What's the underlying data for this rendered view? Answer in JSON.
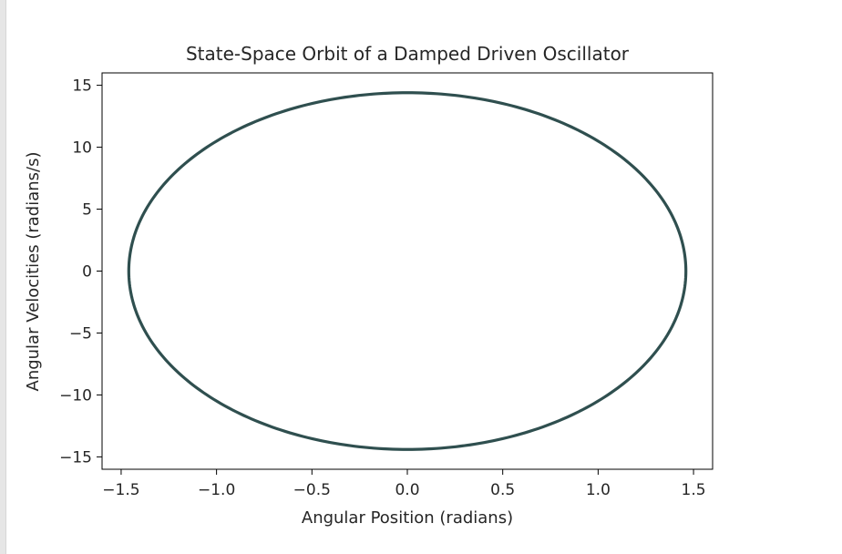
{
  "chart_data": {
    "type": "line",
    "title": "State-Space Orbit of a Damped Driven Oscillator",
    "xlabel": "Angular Position (radians)",
    "ylabel": "Angular Velocities (radians/s)",
    "xlim": [
      -1.6,
      1.6
    ],
    "ylim": [
      -16,
      16
    ],
    "xticks": [
      {
        "value": -1.5,
        "label": "−1.5"
      },
      {
        "value": -1.0,
        "label": "−1.0"
      },
      {
        "value": -0.5,
        "label": "−0.5"
      },
      {
        "value": 0.0,
        "label": "0.0"
      },
      {
        "value": 0.5,
        "label": "0.5"
      },
      {
        "value": 1.0,
        "label": "1.0"
      },
      {
        "value": 1.5,
        "label": "1.5"
      }
    ],
    "yticks": [
      {
        "value": -15,
        "label": "−15"
      },
      {
        "value": -10,
        "label": "−10"
      },
      {
        "value": -5,
        "label": "−5"
      },
      {
        "value": 0,
        "label": "0"
      },
      {
        "value": 5,
        "label": "5"
      },
      {
        "value": 10,
        "label": "10"
      },
      {
        "value": 15,
        "label": "15"
      }
    ],
    "grid": false,
    "series": [
      {
        "color": "#2f4f4f",
        "shape": "ellipse",
        "x_amplitude": 1.46,
        "y_amplitude": 14.4,
        "x_center": 0.0,
        "y_center": 0.0
      }
    ]
  }
}
